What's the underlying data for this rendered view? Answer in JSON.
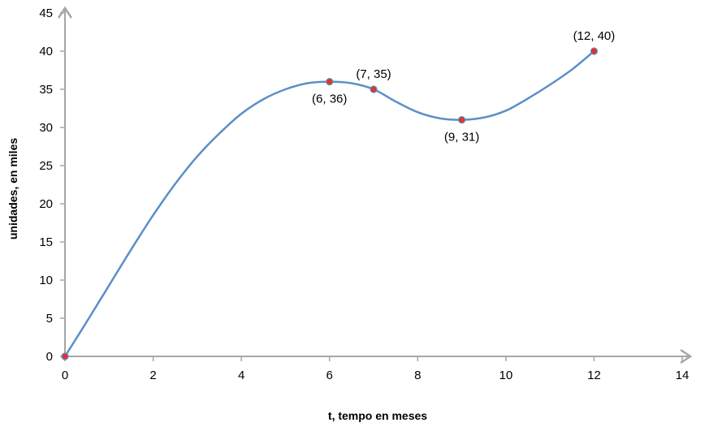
{
  "chart_data": {
    "type": "line",
    "xlabel": "t, tempo en meses",
    "ylabel": "unidades, en miles",
    "xlim": [
      0,
      14
    ],
    "ylim": [
      0,
      45
    ],
    "xticks": [
      0,
      2,
      4,
      6,
      8,
      10,
      12,
      14
    ],
    "yticks": [
      0,
      5,
      10,
      15,
      20,
      25,
      30,
      35,
      40,
      45
    ],
    "grid": false,
    "legend": "none",
    "line_color": "#5b8fc6",
    "marker_color": "#e8302a",
    "axis_color": "#a6a6a6",
    "curve": {
      "x": [
        0,
        0.5,
        1,
        1.5,
        2,
        2.5,
        3,
        3.5,
        4,
        4.5,
        5,
        5.5,
        6,
        6.5,
        7,
        7.5,
        8,
        8.5,
        9,
        9.5,
        10,
        10.5,
        11,
        11.5,
        12
      ],
      "y": [
        0,
        4.6,
        9.3,
        14.0,
        18.5,
        22.6,
        26.2,
        29.2,
        31.8,
        33.7,
        35.0,
        35.8,
        36,
        35.8,
        35,
        33.4,
        32.0,
        31.2,
        31,
        31.3,
        32.2,
        33.8,
        35.6,
        37.6,
        40
      ]
    },
    "points": [
      {
        "x": 0,
        "y": 0,
        "label": ""
      },
      {
        "x": 6,
        "y": 36,
        "label": "(6, 36)",
        "pos": "below"
      },
      {
        "x": 7,
        "y": 35,
        "label": "(7, 35)",
        "pos": "above"
      },
      {
        "x": 9,
        "y": 31,
        "label": "(9, 31)",
        "pos": "below"
      },
      {
        "x": 12,
        "y": 40,
        "label": "(12, 40)",
        "pos": "above"
      }
    ]
  }
}
